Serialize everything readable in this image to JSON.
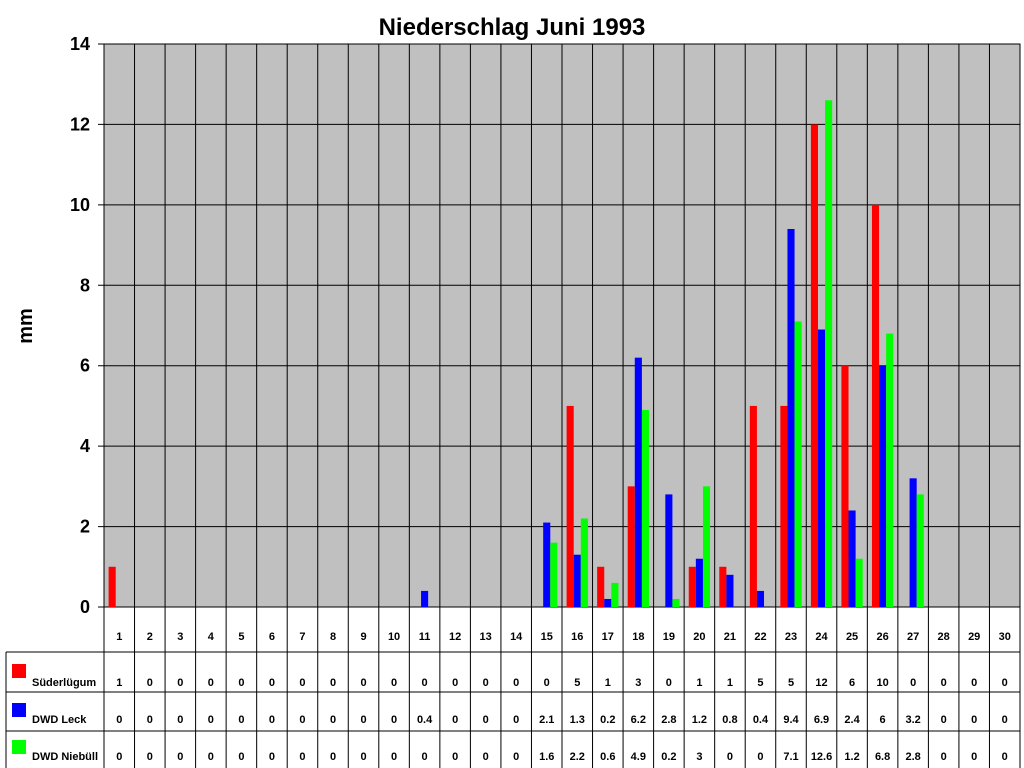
{
  "chart_data": {
    "type": "bar",
    "title": "Niederschlag Juni 1993",
    "ylabel": "mm",
    "xlabel": "",
    "ylim": [
      0,
      14
    ],
    "yticks": [
      "0",
      "2",
      "4",
      "6",
      "8",
      "10",
      "12",
      "14"
    ],
    "grid": true,
    "legend": "data-table-left",
    "categories": [
      "1",
      "2",
      "3",
      "4",
      "5",
      "6",
      "7",
      "8",
      "9",
      "10",
      "11",
      "12",
      "13",
      "14",
      "15",
      "16",
      "17",
      "18",
      "19",
      "20",
      "21",
      "22",
      "23",
      "24",
      "25",
      "26",
      "27",
      "28",
      "29",
      "30"
    ],
    "series": [
      {
        "name": "Süderlügum",
        "color": "#ff0000",
        "values": [
          1,
          0,
          0,
          0,
          0,
          0,
          0,
          0,
          0,
          0,
          0,
          0,
          0,
          0,
          0,
          5,
          1,
          3,
          0,
          1,
          1,
          5,
          5,
          12,
          6,
          10,
          0,
          0,
          0,
          0
        ],
        "labels": [
          "1",
          "0",
          "0",
          "0",
          "0",
          "0",
          "0",
          "0",
          "0",
          "0",
          "0",
          "0",
          "0",
          "0",
          "0",
          "5",
          "1",
          "3",
          "0",
          "1",
          "1",
          "5",
          "5",
          "12",
          "6",
          "10",
          "0",
          "0",
          "0",
          "0"
        ]
      },
      {
        "name": "DWD Leck",
        "color": "#0000ff",
        "values": [
          0,
          0,
          0,
          0,
          0,
          0,
          0,
          0,
          0,
          0,
          0.4,
          0,
          0,
          0,
          2.1,
          1.3,
          0.2,
          6.2,
          2.8,
          1.2,
          0.8,
          0.4,
          9.4,
          6.9,
          2.4,
          6,
          3.2,
          0,
          0,
          0
        ],
        "labels": [
          "0",
          "0",
          "0",
          "0",
          "0",
          "0",
          "0",
          "0",
          "0",
          "0",
          "0.4",
          "0",
          "0",
          "0",
          "2.1",
          "1.3",
          "0.2",
          "6.2",
          "2.8",
          "1.2",
          "0.8",
          "0.4",
          "9.4",
          "6.9",
          "2.4",
          "6",
          "3.2",
          "0",
          "0",
          "0"
        ]
      },
      {
        "name": "DWD Niebüll",
        "color": "#00ff00",
        "values": [
          0,
          0,
          0,
          0,
          0,
          0,
          0,
          0,
          0,
          0,
          0,
          0,
          0,
          0,
          1.6,
          2.2,
          0.6,
          4.9,
          0.2,
          3,
          0,
          0,
          7.1,
          12.6,
          1.2,
          6.8,
          2.8,
          0,
          0,
          0
        ],
        "labels": [
          "0",
          "0",
          "0",
          "0",
          "0",
          "0",
          "0",
          "0",
          "0",
          "0",
          "0",
          "0",
          "0",
          "0",
          "1.6",
          "2.2",
          "0.6",
          "4.9",
          "0.2",
          "3",
          "0",
          "0",
          "7.1",
          "12.6",
          "1.2",
          "6.8",
          "2.8",
          "0",
          "0",
          "0"
        ]
      }
    ],
    "plot_background": "#c0c0c0"
  }
}
